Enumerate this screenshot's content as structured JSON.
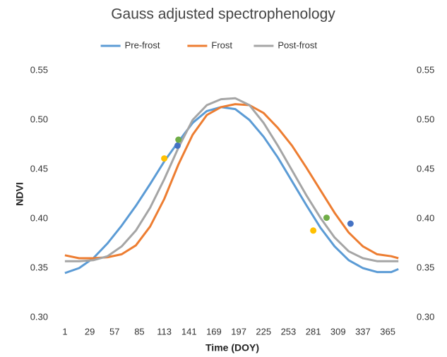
{
  "chart_data": {
    "type": "line",
    "title": "Gauss adjusted spectrophenology",
    "x_label": "Time (DOY)",
    "y_label": "NDVI",
    "x": [
      1,
      17,
      33,
      49,
      65,
      81,
      97,
      113,
      129,
      145,
      161,
      177,
      193,
      209,
      225,
      241,
      257,
      273,
      289,
      305,
      321,
      337,
      353,
      369,
      377
    ],
    "series": [
      {
        "name": "Pre-frost",
        "color": "#5b9bd5",
        "values": [
          0.345,
          0.35,
          0.36,
          0.375,
          0.393,
          0.413,
          0.435,
          0.458,
          0.478,
          0.497,
          0.509,
          0.513,
          0.511,
          0.5,
          0.483,
          0.462,
          0.438,
          0.414,
          0.391,
          0.372,
          0.358,
          0.35,
          0.346,
          0.346,
          0.349
        ]
      },
      {
        "name": "Frost",
        "color": "#ed7d31",
        "values": [
          0.363,
          0.36,
          0.36,
          0.361,
          0.364,
          0.373,
          0.392,
          0.42,
          0.455,
          0.485,
          0.505,
          0.513,
          0.516,
          0.515,
          0.507,
          0.492,
          0.474,
          0.452,
          0.429,
          0.406,
          0.386,
          0.372,
          0.364,
          0.362,
          0.36
        ]
      },
      {
        "name": "Post-frost",
        "color": "#a5a5a5",
        "values": [
          0.357,
          0.357,
          0.358,
          0.362,
          0.372,
          0.388,
          0.411,
          0.44,
          0.472,
          0.5,
          0.515,
          0.521,
          0.522,
          0.515,
          0.497,
          0.474,
          0.449,
          0.424,
          0.401,
          0.381,
          0.367,
          0.36,
          0.357,
          0.357,
          0.357
        ]
      }
    ],
    "points": [
      {
        "x": 113,
        "y": 0.461,
        "color": "#ffc000"
      },
      {
        "x": 128,
        "y": 0.474,
        "color": "#4472c4"
      },
      {
        "x": 129,
        "y": 0.48,
        "color": "#70ad47"
      },
      {
        "x": 281,
        "y": 0.388,
        "color": "#ffc000"
      },
      {
        "x": 296,
        "y": 0.401,
        "color": "#70ad47"
      },
      {
        "x": 323,
        "y": 0.395,
        "color": "#4472c4"
      }
    ],
    "xlim": [
      -8.5,
      388
    ],
    "xticks": [
      1,
      29,
      57,
      85,
      113,
      141,
      169,
      197,
      225,
      253,
      281,
      309,
      337,
      365
    ],
    "ylim": [
      0.3,
      0.55
    ],
    "yticks": [
      {
        "value": 0.3,
        "label": "0.30"
      },
      0.35,
      {
        "value": 0.4,
        "label": "0.40"
      },
      0.45,
      {
        "value": 0.5,
        "label": "0.50"
      },
      0.55
    ],
    "y2lim": [
      0.3,
      0.55
    ],
    "y2ticks": [
      {
        "value": 0.3,
        "label": "0.30"
      },
      0.35,
      {
        "value": 0.4,
        "label": "0.40"
      },
      0.45,
      {
        "value": 0.5,
        "label": "0.50"
      },
      0.55
    ],
    "grid": false,
    "legend": "top"
  }
}
